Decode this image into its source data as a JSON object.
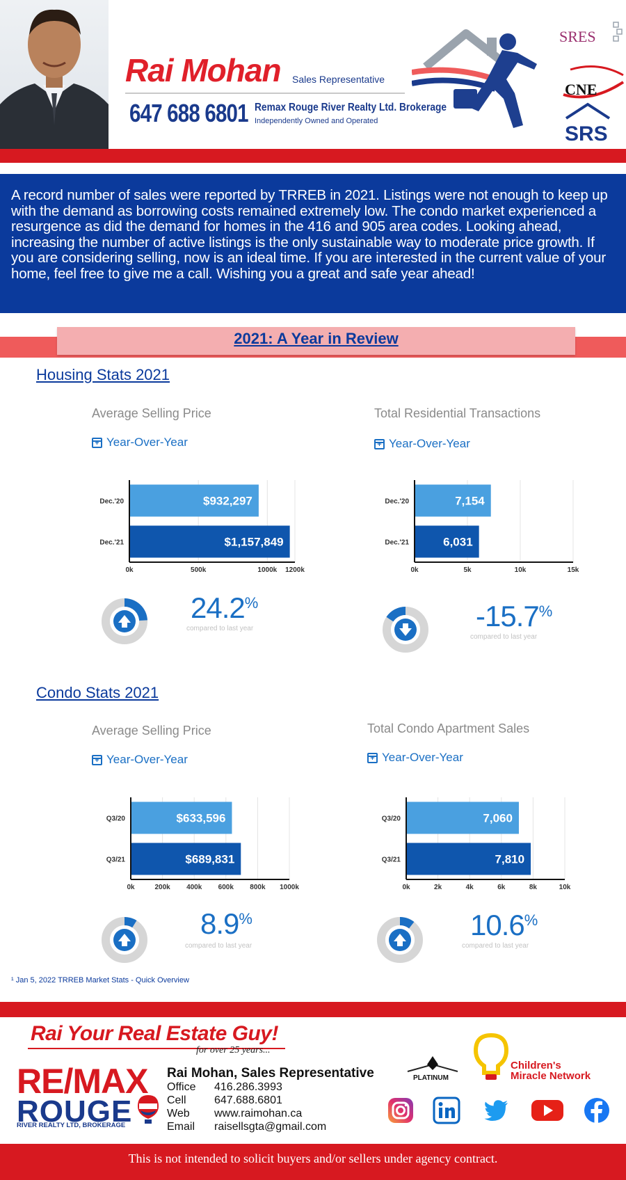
{
  "header": {
    "name": "Rai Mohan",
    "title": "Sales Representative",
    "phone": "647 688 6801",
    "brokerage": "Remax Rouge River Realty Ltd. Brokerage",
    "independent": "Independently Owned and Operated",
    "designations": [
      "SRES",
      "CNE",
      "SRS"
    ]
  },
  "intro": {
    "text": "A record number of sales were reported by TRREB in 2021. Listings were not enough to keep up with the demand as borrowing costs remained extremely low. The condo market experienced a resurgence as did the demand for homes in the 416 and 905 area codes. Looking ahead, increasing the number of active listings is the only sustainable way to moderate price growth. If you are considering selling, now is an ideal time. If you are interested in the current value of your home, feel free to give me a call. Wishing you a great and safe year ahead!"
  },
  "review_title": "2021: A Year in Review",
  "housing": {
    "heading": "Housing Stats 2021",
    "price": {
      "title": "Average Selling Price",
      "yoy": "Year-Over-Year",
      "pct": "24.2",
      "pct_sign": "%",
      "compared": "compared to last year",
      "direction": "up",
      "fraction": 0.242
    },
    "transactions": {
      "title": "Total Residential Transactions",
      "yoy": "Year-Over-Year",
      "pct": "-15.7",
      "pct_sign": "%",
      "compared": "compared to last year",
      "direction": "down",
      "fraction": 0.157
    }
  },
  "condo": {
    "heading": "Condo Stats 2021",
    "price": {
      "title": "Average Selling Price",
      "yoy": "Year-Over-Year",
      "pct": "8.9",
      "pct_sign": "%",
      "compared": "compared to last year",
      "direction": "up",
      "fraction": 0.089
    },
    "sales": {
      "title": "Total Condo Apartment Sales",
      "yoy": "Year-Over-Year",
      "pct": "10.6",
      "pct_sign": "%",
      "compared": "compared to last year",
      "direction": "up",
      "fraction": 0.106
    }
  },
  "chart_data": [
    {
      "type": "bar",
      "orientation": "horizontal",
      "categories": [
        "Dec.'20",
        "Dec.'21"
      ],
      "values": [
        932297,
        1157849
      ],
      "labels": [
        "$932,297",
        "$1,157,849"
      ],
      "xlim": [
        0,
        1200000
      ],
      "ticks": [
        {
          "v": 0,
          "t": "0k"
        },
        {
          "v": 500000,
          "t": "500k"
        },
        {
          "v": 1000000,
          "t": "1000k"
        },
        {
          "v": 1200000,
          "t": "1200k"
        }
      ],
      "colors": [
        "#4aa0e0",
        "#0f56ad"
      ]
    },
    {
      "type": "bar",
      "orientation": "horizontal",
      "categories": [
        "Dec.'20",
        "Dec.'21"
      ],
      "values": [
        7154,
        6031
      ],
      "labels": [
        "7,154",
        "6,031"
      ],
      "xlim": [
        0,
        15000
      ],
      "ticks": [
        {
          "v": 0,
          "t": "0k"
        },
        {
          "v": 5000,
          "t": "5k"
        },
        {
          "v": 10000,
          "t": "10k"
        },
        {
          "v": 15000,
          "t": "15k"
        }
      ],
      "colors": [
        "#4aa0e0",
        "#0f56ad"
      ]
    },
    {
      "type": "bar",
      "orientation": "horizontal",
      "categories": [
        "Q3/20",
        "Q3/21"
      ],
      "values": [
        633596,
        689831
      ],
      "labels": [
        "$633,596",
        "$689,831"
      ],
      "xlim": [
        0,
        1000000
      ],
      "ticks": [
        {
          "v": 0,
          "t": "0k"
        },
        {
          "v": 200000,
          "t": "200k"
        },
        {
          "v": 400000,
          "t": "400k"
        },
        {
          "v": 600000,
          "t": "600k"
        },
        {
          "v": 800000,
          "t": "800k"
        },
        {
          "v": 1000000,
          "t": "1000k"
        }
      ],
      "colors": [
        "#4aa0e0",
        "#0f56ad"
      ]
    },
    {
      "type": "bar",
      "orientation": "horizontal",
      "categories": [
        "Q3/20",
        "Q3/21"
      ],
      "values": [
        7060,
        7810
      ],
      "labels": [
        "7,060",
        "7,810"
      ],
      "xlim": [
        0,
        10000
      ],
      "ticks": [
        {
          "v": 0,
          "t": "0k"
        },
        {
          "v": 2000,
          "t": "2k"
        },
        {
          "v": 4000,
          "t": "4k"
        },
        {
          "v": 6000,
          "t": "6k"
        },
        {
          "v": 8000,
          "t": "8k"
        },
        {
          "v": 10000,
          "t": "10k"
        }
      ],
      "colors": [
        "#4aa0e0",
        "#0f56ad"
      ]
    }
  ],
  "footnote": "¹ Jan 5, 2022 TRREB Market Stats - Quick Overview",
  "footer": {
    "tagline": "Rai Your Real Estate Guy!",
    "tagline_sub": "for over 25 years...",
    "brand_line1": "RE/MAX",
    "brand_line2": "ROUGE",
    "brand_sub": "RIVER REALTY LTD, BROKERAGE",
    "contact_name": "Rai Mohan, Sales Representative",
    "contacts": [
      {
        "label": "Office",
        "value": "416.286.3993"
      },
      {
        "label": "Cell",
        "value": "647.688.6801"
      },
      {
        "label": "Web",
        "value": "www.raimohan.ca"
      },
      {
        "label": "Email",
        "value": "raisellsgta@gmail.com"
      }
    ],
    "platinum": "PLATINUM",
    "cmn_line1": "Children's",
    "cmn_line2": "Miracle Network",
    "social": [
      "instagram-icon",
      "linkedin-icon",
      "twitter-icon",
      "youtube-icon",
      "facebook-icon"
    ],
    "disclaimer": "This is not intended to solicit buyers and/or sellers under agency contract."
  },
  "colors": {
    "red": "#d71920",
    "navy": "#0b3a9c",
    "accent_blue": "#1a6fc4",
    "bar_light": "#4aa0e0",
    "bar_dark": "#0f56ad"
  }
}
